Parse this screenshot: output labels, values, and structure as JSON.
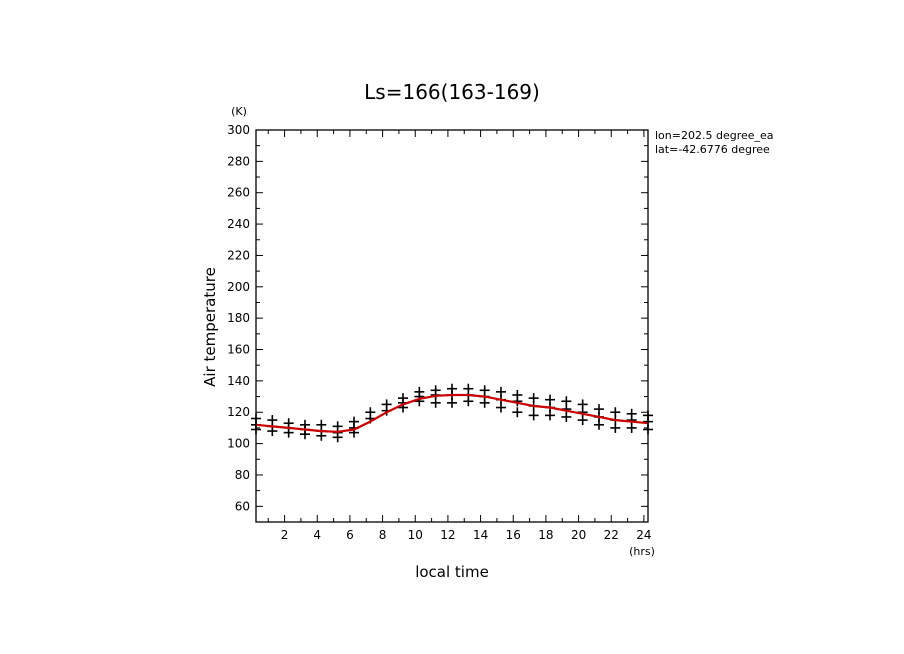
{
  "chart_data": {
    "type": "scatter",
    "title": "Ls=166(163-169)",
    "xlabel": "local time",
    "xunit": "(hrs)",
    "ylabel": "Air temperature",
    "yunit": "(K)",
    "annotations": [
      "lon=202.5 degree_ea",
      "lat=-42.6776 degree"
    ],
    "xlim": [
      0.25,
      24.25
    ],
    "ylim": [
      50,
      300
    ],
    "xticks": [
      "2",
      "4",
      "6",
      "8",
      "10",
      "12",
      "14",
      "16",
      "18",
      "20",
      "22",
      "24"
    ],
    "yticks": [
      "60",
      "80",
      "100",
      "120",
      "140",
      "160",
      "180",
      "200",
      "220",
      "240",
      "260",
      "280",
      "300"
    ],
    "grid": false,
    "colors": {
      "mean_line": "#cc0000",
      "points": "#000000"
    },
    "series": [
      {
        "kind": "scatter",
        "marker": "plus",
        "x": [
          0.25,
          0.25,
          0.25,
          1.25,
          1.25,
          1.25,
          2.25,
          2.25,
          2.25,
          3.25,
          3.25,
          3.25,
          4.25,
          4.25,
          4.25,
          5.25,
          5.25,
          5.25,
          6.25,
          6.25,
          6.25,
          7.25,
          7.25,
          8.25,
          8.25,
          9.25,
          9.25,
          9.25,
          10.25,
          10.25,
          10.25,
          11.25,
          11.25,
          11.25,
          12.25,
          12.25,
          12.25,
          13.25,
          13.25,
          13.25,
          14.25,
          14.25,
          14.25,
          15.25,
          15.25,
          15.25,
          16.25,
          16.25,
          16.25,
          17.25,
          17.25,
          17.25,
          18.25,
          18.25,
          18.25,
          19.25,
          19.25,
          19.25,
          20.25,
          20.25,
          20.25,
          21.25,
          21.25,
          21.25,
          22.25,
          22.25,
          22.25,
          23.25,
          23.25,
          23.25,
          24.25,
          24.25,
          24.25
        ],
        "y": [
          116,
          112,
          109,
          115,
          111,
          108,
          113,
          110,
          107,
          112,
          109,
          106,
          112,
          108,
          105,
          111,
          107,
          104,
          114,
          110,
          107,
          120,
          116,
          125,
          121,
          129,
          126,
          123,
          133,
          130,
          127,
          134,
          131,
          126,
          135,
          131,
          126,
          135,
          131,
          127,
          134,
          130,
          126,
          133,
          128,
          123,
          131,
          127,
          120,
          129,
          124,
          118,
          128,
          123,
          118,
          127,
          122,
          117,
          125,
          120,
          115,
          122,
          117,
          112,
          120,
          115,
          110,
          119,
          115,
          110,
          118,
          114,
          109
        ]
      }
    ],
    "mean_line": {
      "x": [
        0.25,
        1.25,
        2.25,
        3.25,
        4.25,
        5.25,
        6.25,
        7.25,
        8.25,
        9.25,
        10.25,
        11.25,
        12.25,
        13.25,
        14.25,
        15.25,
        16.25,
        17.25,
        18.25,
        19.25,
        20.25,
        21.25,
        22.25,
        23.25,
        24.25
      ],
      "y": [
        112,
        111,
        110,
        109,
        108,
        107.5,
        109,
        114,
        120,
        125,
        128.5,
        130.5,
        131,
        131,
        130,
        128,
        126,
        124,
        123,
        121,
        119,
        117,
        115,
        114,
        113
      ]
    }
  }
}
